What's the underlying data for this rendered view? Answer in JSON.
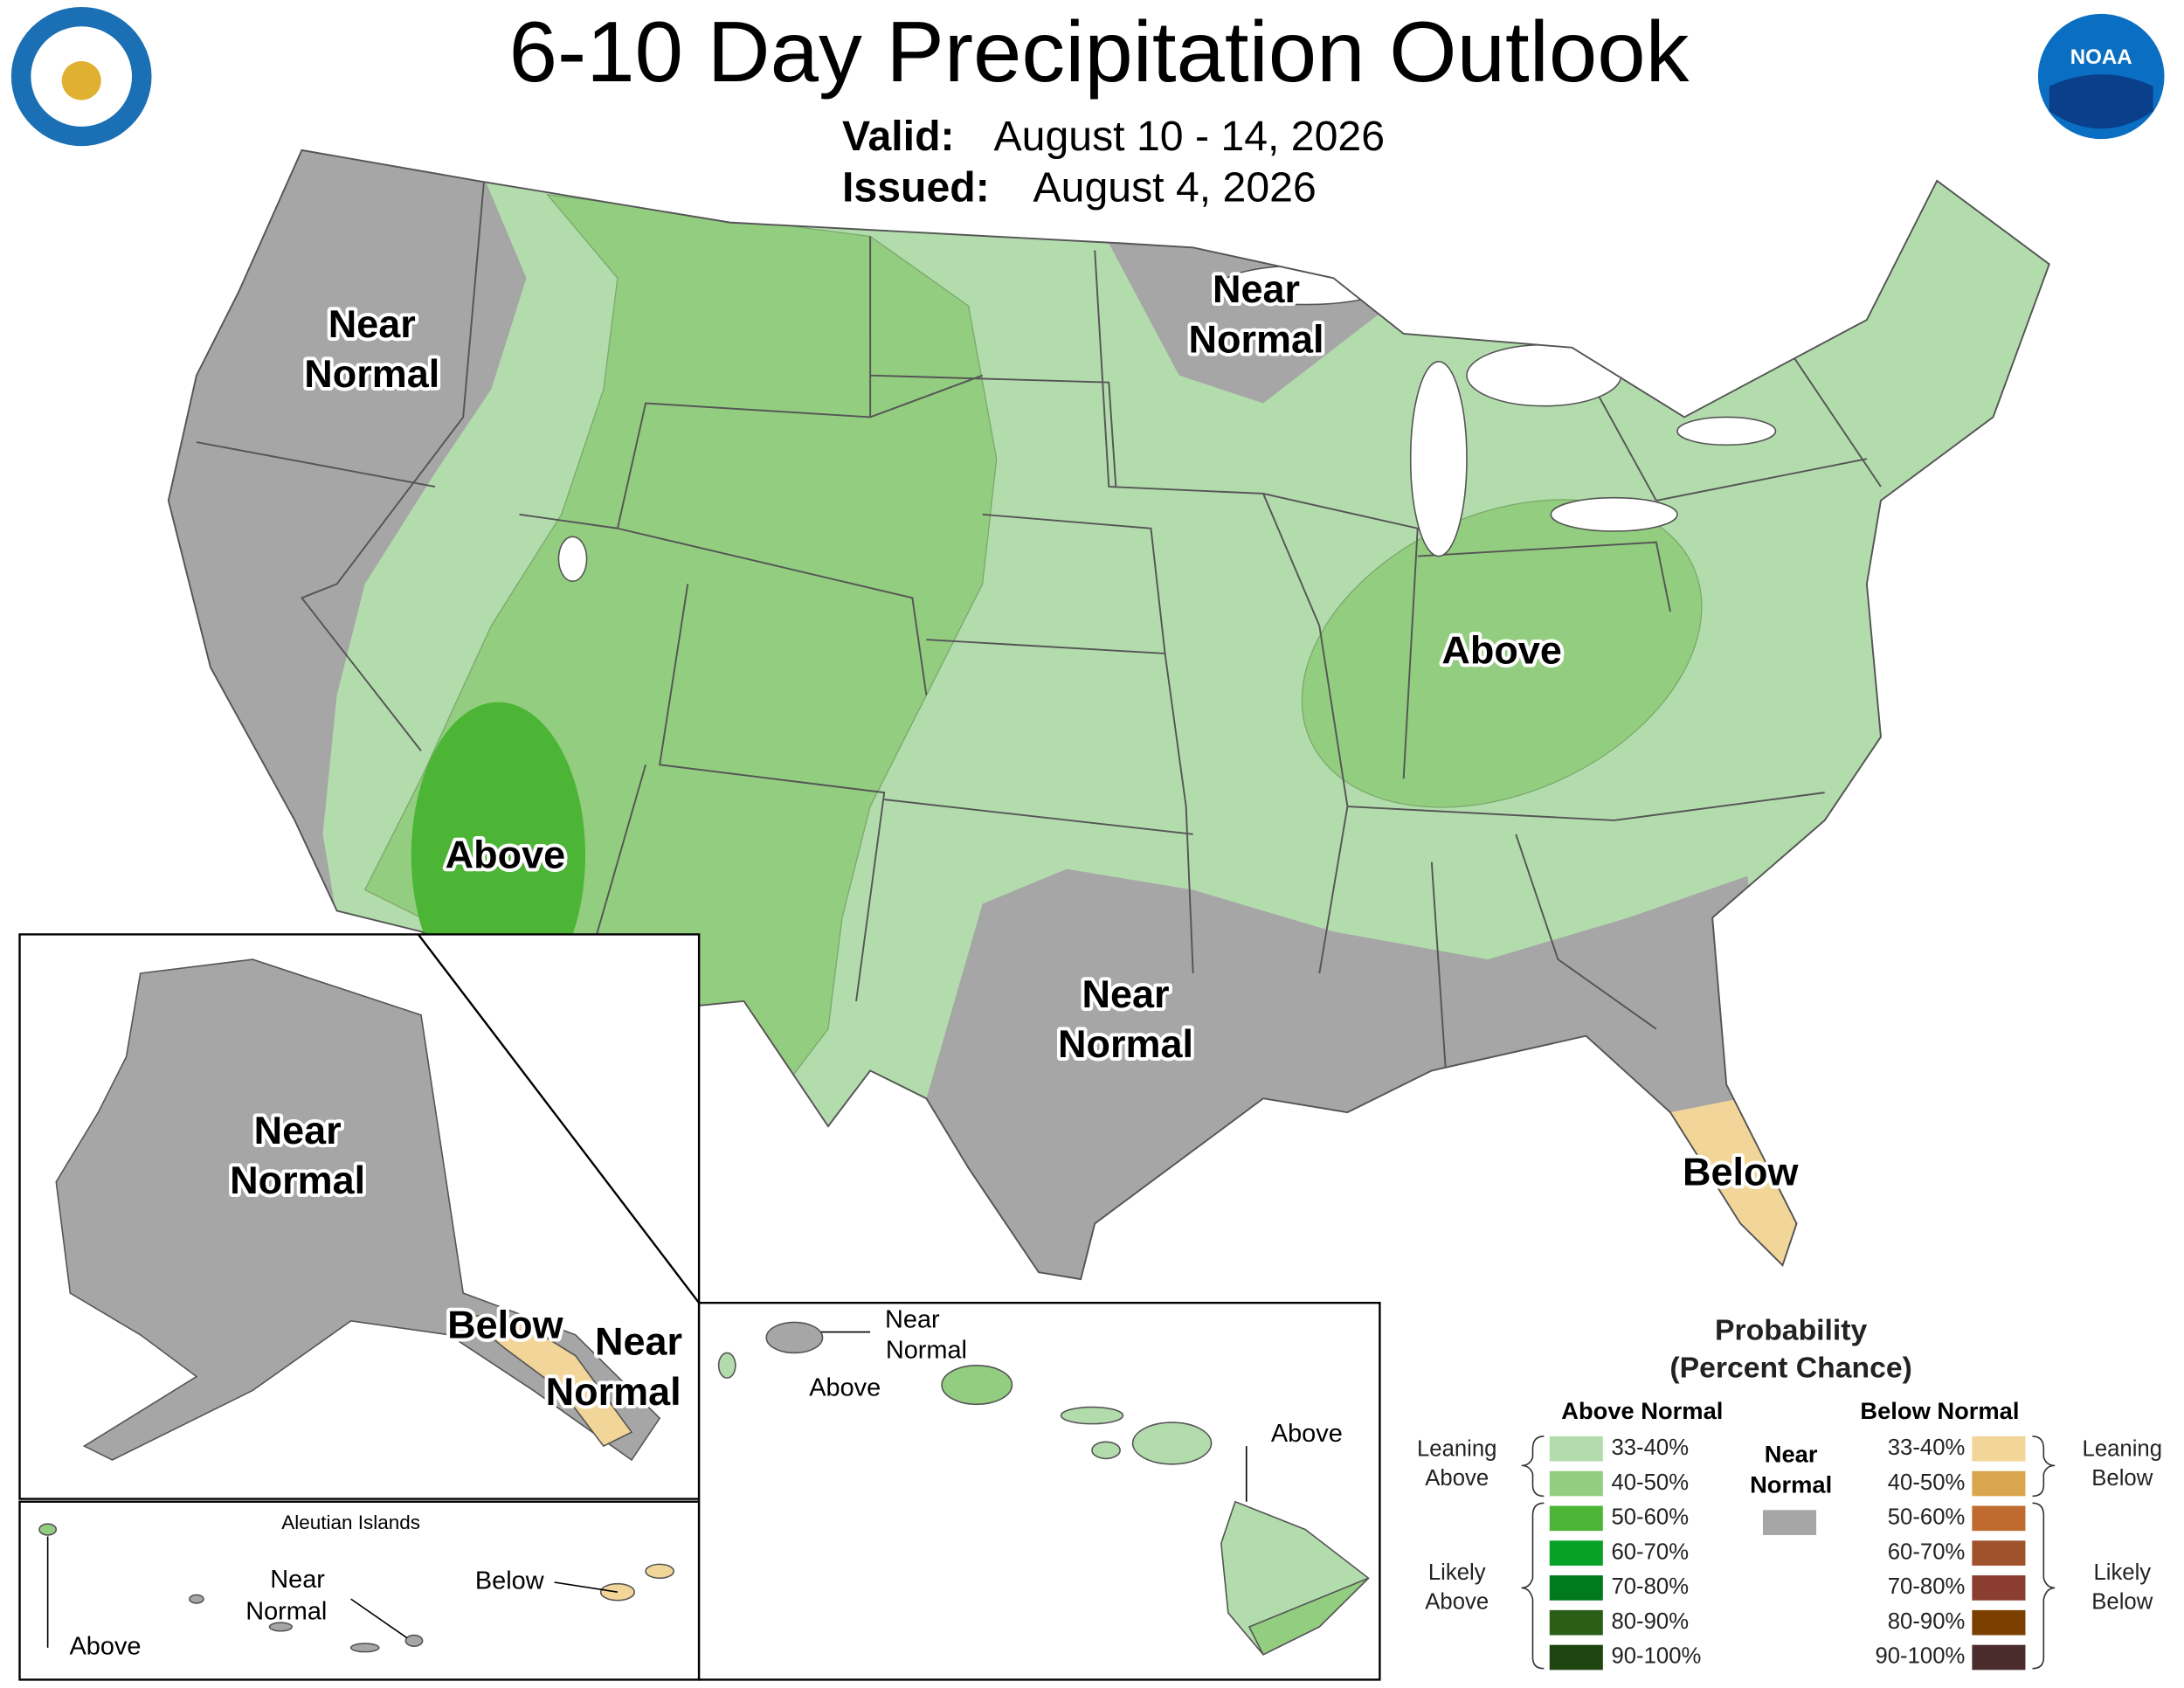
{
  "header": {
    "title": "6-10 Day Precipitation Outlook",
    "valid_label": "Valid:",
    "valid": "August 10 - 14, 2026",
    "issued_label": "Issued:",
    "issued": "August 4, 2026",
    "noaa": "NOAA"
  },
  "map_labels": [
    {
      "lines": [
        "Near",
        "Normal"
      ],
      "size": "large"
    },
    {
      "lines": [
        "Near",
        "Normal"
      ],
      "size": "large"
    },
    {
      "lines": [
        "Above"
      ],
      "size": "large"
    },
    {
      "lines": [
        "Above"
      ],
      "size": "large"
    },
    {
      "lines": [
        "Near",
        "Normal"
      ],
      "size": "large"
    },
    {
      "lines": [
        "Below"
      ],
      "size": "large"
    },
    {
      "lines": [
        "Near",
        "Normal"
      ],
      "size": "large"
    },
    {
      "lines": [
        "Below"
      ],
      "size": "large"
    },
    {
      "lines": [
        "Near",
        "Normal"
      ],
      "size": "large"
    },
    {
      "lines": [
        "Near",
        "Normal"
      ],
      "size": "small"
    },
    {
      "lines": [
        "Above"
      ],
      "size": "small"
    },
    {
      "lines": [
        "Above"
      ],
      "size": "small"
    },
    {
      "lines": [
        "Aleutian Islands"
      ],
      "size": "tiny"
    },
    {
      "lines": [
        "Near",
        "Normal"
      ],
      "size": "small"
    },
    {
      "lines": [
        "Below"
      ],
      "size": "small"
    },
    {
      "lines": [
        "Above"
      ],
      "size": "small"
    }
  ],
  "legend": {
    "title": [
      "Probability",
      "(Percent Chance)"
    ],
    "above_header": "Above Normal",
    "below_header": "Below Normal",
    "near": [
      "Near",
      "Normal"
    ],
    "near_color": "#a6a6a6",
    "above": [
      {
        "range": "33-40%",
        "color": "#b3dcad"
      },
      {
        "range": "40-50%",
        "color": "#93cd80"
      },
      {
        "range": "50-60%",
        "color": "#4cb535"
      },
      {
        "range": "60-70%",
        "color": "#07a127"
      },
      {
        "range": "70-80%",
        "color": "#007a1c"
      },
      {
        "range": "80-90%",
        "color": "#2b5f18"
      },
      {
        "range": "90-100%",
        "color": "#1e4510"
      }
    ],
    "below": [
      {
        "range": "33-40%",
        "color": "#f2d598"
      },
      {
        "range": "40-50%",
        "color": "#d9a54e"
      },
      {
        "range": "50-60%",
        "color": "#bf6b30"
      },
      {
        "range": "60-70%",
        "color": "#a0522d"
      },
      {
        "range": "70-80%",
        "color": "#8b3e2f"
      },
      {
        "range": "80-90%",
        "color": "#7b3f00"
      },
      {
        "range": "90-100%",
        "color": "#4b2c2c"
      }
    ],
    "leaning_above": [
      "Leaning",
      "Above"
    ],
    "likely_above": [
      "Likely",
      "Above"
    ],
    "leaning_below": [
      "Leaning",
      "Below"
    ],
    "likely_below": [
      "Likely",
      "Below"
    ]
  }
}
